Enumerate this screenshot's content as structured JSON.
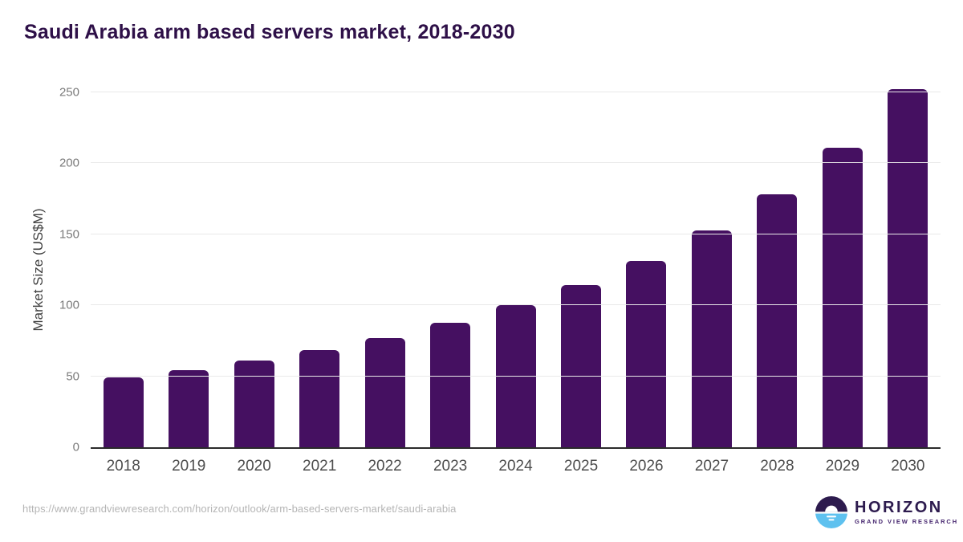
{
  "chart_data": {
    "type": "bar",
    "title": "Saudi Arabia arm based servers market, 2018-2030",
    "categories": [
      "2018",
      "2019",
      "2020",
      "2021",
      "2022",
      "2023",
      "2024",
      "2025",
      "2026",
      "2027",
      "2028",
      "2029",
      "2030"
    ],
    "values": [
      49,
      54.5,
      61,
      68.5,
      77,
      87.5,
      100,
      114,
      131.5,
      152.5,
      178,
      211,
      252.5
    ],
    "xlabel": "",
    "ylabel": "Market Size (US$M)",
    "yticks": [
      0,
      50,
      100,
      150,
      200,
      250
    ],
    "ylim": [
      0,
      250
    ],
    "grid": true,
    "legend": false,
    "bar_color": "#451061"
  },
  "footer": {
    "source_url": "https://www.grandviewresearch.com/horizon/outlook/arm-based-servers-market/saudi-arabia",
    "logo": {
      "primary": "HORIZON",
      "secondary": "GRAND VIEW RESEARCH"
    }
  },
  "colors": {
    "title": "#2e1048",
    "axis_line": "#2b2b2b",
    "gridline": "#e9e9e9",
    "y_tick": "#7a7a7a",
    "x_tick": "#4d4d4d",
    "url": "#b5b5b5",
    "logo_dark": "#2d1b4e",
    "logo_blue": "#5ec1ef"
  }
}
